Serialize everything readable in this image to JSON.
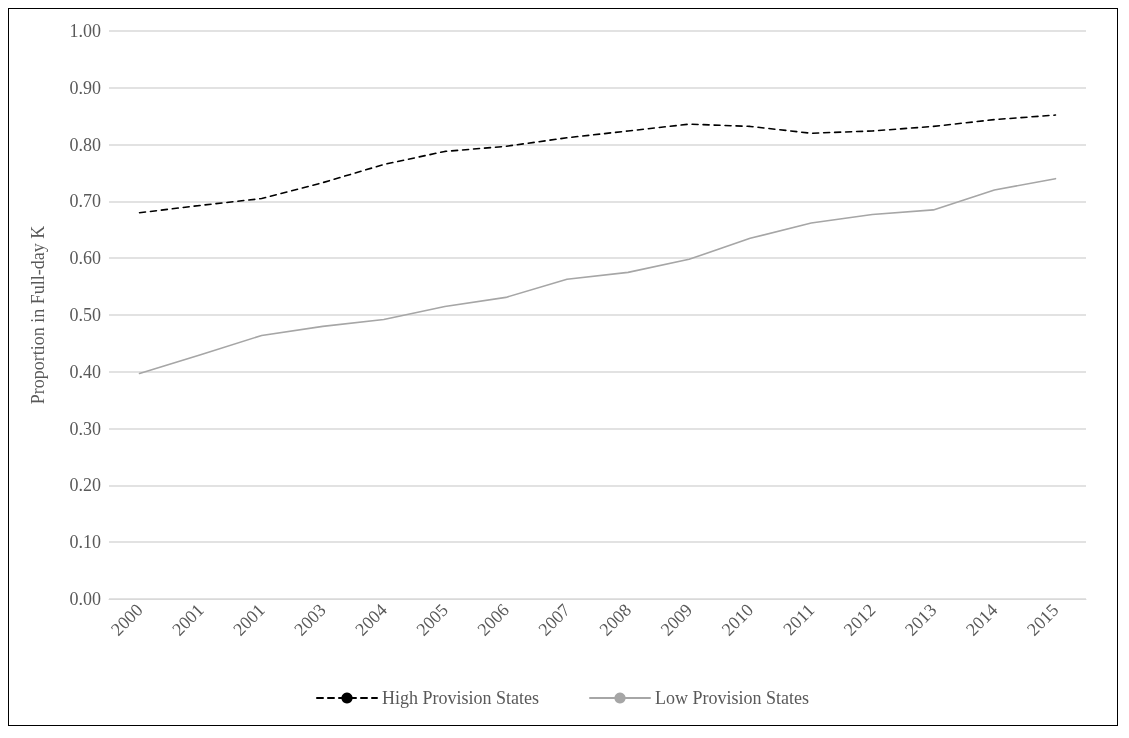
{
  "chart_data": {
    "type": "line",
    "ylabel": "Proportion in Full-day K",
    "categories": [
      "2000",
      "2001",
      "2001",
      "2003",
      "2004",
      "2005",
      "2006",
      "2007",
      "2008",
      "2009",
      "2010",
      "2011",
      "2012",
      "2013",
      "2014",
      "2015"
    ],
    "series": [
      {
        "name": "High Provision States",
        "color": "#000000",
        "line_style": "dashed",
        "values": [
          0.68,
          0.693,
          0.705,
          0.733,
          0.765,
          0.788,
          0.797,
          0.812,
          0.824,
          0.836,
          0.832,
          0.82,
          0.824,
          0.832,
          0.844,
          0.852
        ]
      },
      {
        "name": "Low Provision States",
        "color": "#a6a6a6",
        "line_style": "solid",
        "values": [
          0.397,
          0.43,
          0.464,
          0.48,
          0.492,
          0.515,
          0.531,
          0.563,
          0.575,
          0.598,
          0.635,
          0.662,
          0.677,
          0.685,
          0.72,
          0.74
        ]
      }
    ],
    "ylim": [
      0,
      1
    ],
    "yticks": [
      {
        "value": 0,
        "label": "0.00"
      },
      {
        "value": 0.1,
        "label": "0.10"
      },
      {
        "value": 0.2,
        "label": "0.20"
      },
      {
        "value": 0.3,
        "label": "0.30"
      },
      {
        "value": 0.4,
        "label": "0.40"
      },
      {
        "value": 0.5,
        "label": "0.50"
      },
      {
        "value": 0.6,
        "label": "0.60"
      },
      {
        "value": 0.7,
        "label": "0.70"
      },
      {
        "value": 0.8,
        "label": "0.80"
      },
      {
        "value": 0.9,
        "label": "0.90"
      },
      {
        "value": 1,
        "label": "1.00"
      }
    ],
    "grid": "y",
    "legend": "bottom",
    "marker": "none"
  }
}
